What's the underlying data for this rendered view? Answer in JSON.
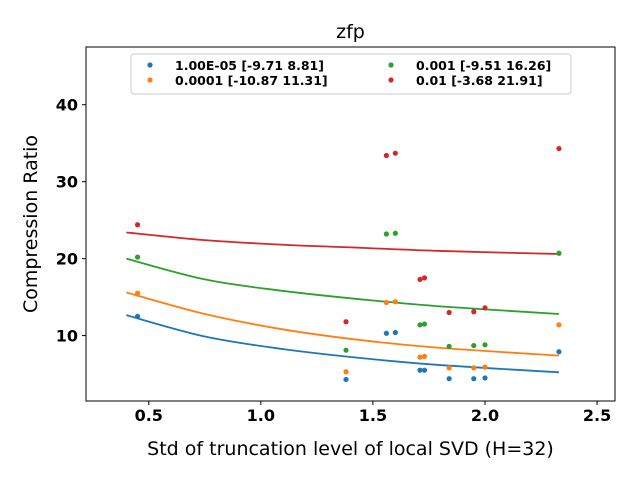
{
  "chart_data": {
    "type": "scatter",
    "title": "zfp",
    "xlabel": "Std of truncation level of local SVD (H=32)",
    "ylabel": "Compression Ratio",
    "xlim": [
      0.22,
      2.58
    ],
    "ylim": [
      1.5,
      47.5
    ],
    "xticks": [
      0.5,
      1.0,
      1.5,
      2.0,
      2.5
    ],
    "xtick_labels": [
      "0.5",
      "1.0",
      "1.5",
      "2.0",
      "2.5"
    ],
    "yticks": [
      10,
      20,
      30,
      40
    ],
    "ytick_labels": [
      "10",
      "20",
      "30",
      "40"
    ],
    "grid": false,
    "legend_position": "top-center",
    "fit_x_range": [
      0.4,
      2.33
    ],
    "series": [
      {
        "name": "1.00E-05",
        "fit_params": "[-9.71  8.81]",
        "color": "#1f77b4",
        "x": [
          0.45,
          1.38,
          1.56,
          1.6,
          1.71,
          1.73,
          1.84,
          1.95,
          2.0,
          2.33
        ],
        "y": [
          12.5,
          4.3,
          10.3,
          10.4,
          5.5,
          5.5,
          4.4,
          4.4,
          4.5,
          7.9
        ],
        "fit_y": [
          12.66,
          9.88,
          8.24,
          7.07,
          6.17,
          5.23
        ]
      },
      {
        "name": "0.0001",
        "fit_params": "[-10.87  11.31]",
        "color": "#ff7f0e",
        "x": [
          0.45,
          1.38,
          1.56,
          1.6,
          1.71,
          1.73,
          1.84,
          1.95,
          2.0,
          2.33
        ],
        "y": [
          15.5,
          5.3,
          14.3,
          14.4,
          7.2,
          7.3,
          5.8,
          5.8,
          5.9,
          11.4
        ],
        "fit_y": [
          15.6,
          12.8,
          10.8,
          9.4,
          8.4,
          7.4
        ]
      },
      {
        "name": "0.001",
        "fit_params": "[-9.51 16.26]",
        "color": "#2ca02c",
        "x": [
          0.45,
          1.38,
          1.56,
          1.6,
          1.71,
          1.73,
          1.84,
          1.95,
          2.0,
          2.33
        ],
        "y": [
          20.2,
          8.1,
          23.2,
          23.3,
          11.4,
          11.5,
          8.6,
          8.7,
          8.8,
          20.7
        ],
        "fit_y": [
          20.0,
          17.3,
          15.8,
          14.7,
          13.8,
          12.8
        ]
      },
      {
        "name": "0.01",
        "fit_params": "[-3.68 21.91]",
        "color": "#d62728",
        "x": [
          0.45,
          1.38,
          1.56,
          1.6,
          1.71,
          1.73,
          1.84,
          1.95,
          2.0,
          2.33
        ],
        "y": [
          24.4,
          11.8,
          33.4,
          33.7,
          17.3,
          17.5,
          13.0,
          13.1,
          13.6,
          34.3
        ],
        "fit_y": [
          23.4,
          22.4,
          21.8,
          21.4,
          21.0,
          20.6
        ]
      }
    ],
    "fit_x": [
      0.4,
      0.75,
      1.1,
      1.45,
      1.8,
      2.33
    ]
  }
}
